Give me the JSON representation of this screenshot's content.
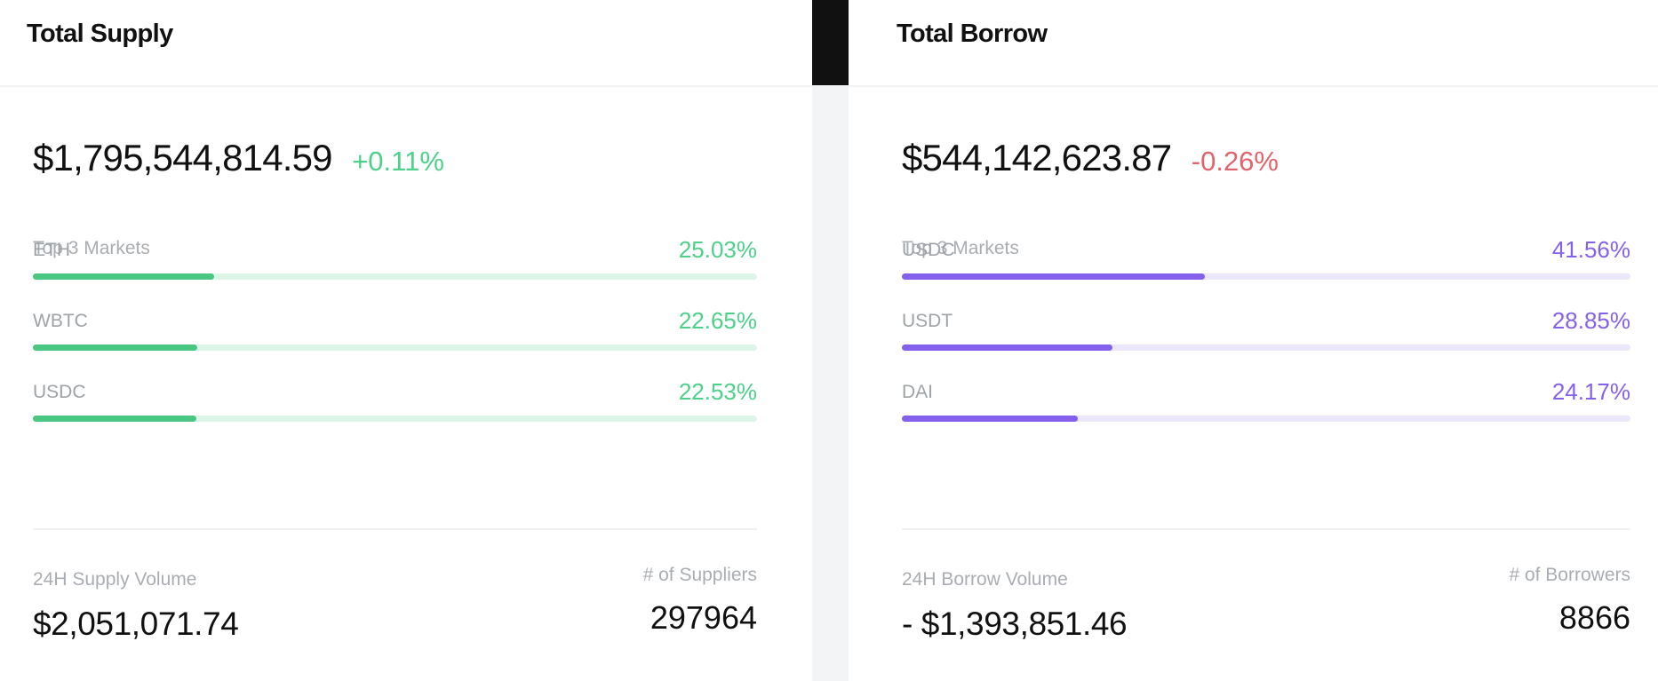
{
  "supply": {
    "title": "Total Supply",
    "total": "$1,795,544,814.59",
    "change": "+0.11%",
    "markets_label": "Top 3 Markets",
    "markets": [
      {
        "name": "ETH",
        "percent_label": "25.03%",
        "fill_fraction": 0.25
      },
      {
        "name": "WBTC",
        "percent_label": "22.65%",
        "fill_fraction": 0.2265
      },
      {
        "name": "USDC",
        "percent_label": "22.53%",
        "fill_fraction": 0.2253
      }
    ],
    "volume_label": "24H Supply Volume",
    "volume_value": "$2,051,071.74",
    "count_label": "# of Suppliers",
    "count_value": "297964"
  },
  "borrow": {
    "title": "Total Borrow",
    "total": "$544,142,623.87",
    "change": "-0.26%",
    "markets_label": "Top 3 Markets",
    "markets": [
      {
        "name": "USDC",
        "percent_label": "41.56%",
        "fill_fraction": 0.4156
      },
      {
        "name": "USDT",
        "percent_label": "28.85%",
        "fill_fraction": 0.2885
      },
      {
        "name": "DAI",
        "percent_label": "24.17%",
        "fill_fraction": 0.2417
      }
    ],
    "volume_label": "24H Borrow Volume",
    "volume_value": "- $1,393,851.46",
    "count_label": "# of Borrowers",
    "count_value": "8866"
  },
  "colors": {
    "positive": "#4cd08a",
    "negative": "#e0646c",
    "supply_bar": "#49c681",
    "borrow_bar": "#8361ec"
  }
}
